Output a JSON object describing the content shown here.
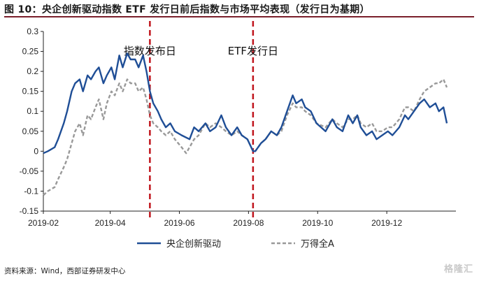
{
  "figure": {
    "title": "图 10：央企创新驱动指数 ETF 发行日前后指数与市场平均表现（发行日为基期）",
    "source": "资料来源：Wind，西部证券研发中心",
    "watermark": "格隆汇"
  },
  "colors": {
    "series_index": "#1f4e96",
    "series_market": "#999999",
    "event_line": "#c0141c",
    "title_rule": "#7a1f2b"
  },
  "chart_data": {
    "type": "line",
    "title": "",
    "xlabel": "",
    "ylabel": "",
    "ylim": [
      -0.15,
      0.3
    ],
    "yticks": [
      -0.15,
      -0.1,
      -0.05,
      0,
      0.05,
      0.1,
      0.15,
      0.2,
      0.25,
      0.3
    ],
    "ytick_labels": [
      "-0.15",
      "-0.1",
      "-0.05",
      "0",
      "0.05",
      "0.1",
      "0.15",
      "0.2",
      "0.25",
      "0.3"
    ],
    "xlim": [
      "2019-02-01",
      "2020-01-31"
    ],
    "xticks": [
      "2019-02",
      "2019-04",
      "2019-06",
      "2019-08",
      "2019-10",
      "2019-12"
    ],
    "grid": false,
    "legend_position": "bottom",
    "annotations": [
      {
        "label": "指数发布日",
        "date": "2019-05-06"
      },
      {
        "label": "ETF发行日",
        "date": "2019-08-05"
      }
    ],
    "series": [
      {
        "name": "央企创新驱动",
        "style": "solid",
        "points": [
          [
            "2019-02-01",
            -0.005
          ],
          [
            "2019-02-05",
            0.0
          ],
          [
            "2019-02-11",
            0.01
          ],
          [
            "2019-02-14",
            0.03
          ],
          [
            "2019-02-19",
            0.07
          ],
          [
            "2019-02-22",
            0.1
          ],
          [
            "2019-02-26",
            0.15
          ],
          [
            "2019-03-01",
            0.17
          ],
          [
            "2019-03-05",
            0.18
          ],
          [
            "2019-03-08",
            0.15
          ],
          [
            "2019-03-12",
            0.19
          ],
          [
            "2019-03-15",
            0.18
          ],
          [
            "2019-03-19",
            0.2
          ],
          [
            "2019-03-22",
            0.21
          ],
          [
            "2019-03-26",
            0.17
          ],
          [
            "2019-03-29",
            0.19
          ],
          [
            "2019-04-02",
            0.21
          ],
          [
            "2019-04-05",
            0.18
          ],
          [
            "2019-04-09",
            0.24
          ],
          [
            "2019-04-12",
            0.21
          ],
          [
            "2019-04-16",
            0.245
          ],
          [
            "2019-04-19",
            0.23
          ],
          [
            "2019-04-23",
            0.23
          ],
          [
            "2019-04-26",
            0.21
          ],
          [
            "2019-04-30",
            0.24
          ],
          [
            "2019-05-03",
            0.2
          ],
          [
            "2019-05-06",
            0.15
          ],
          [
            "2019-05-09",
            0.12
          ],
          [
            "2019-05-13",
            0.1
          ],
          [
            "2019-05-16",
            0.08
          ],
          [
            "2019-05-20",
            0.06
          ],
          [
            "2019-05-24",
            0.07
          ],
          [
            "2019-05-28",
            0.05
          ],
          [
            "2019-06-03",
            0.04
          ],
          [
            "2019-06-10",
            0.03
          ],
          [
            "2019-06-14",
            0.06
          ],
          [
            "2019-06-18",
            0.05
          ],
          [
            "2019-06-24",
            0.07
          ],
          [
            "2019-06-28",
            0.05
          ],
          [
            "2019-07-03",
            0.06
          ],
          [
            "2019-07-08",
            0.09
          ],
          [
            "2019-07-12",
            0.06
          ],
          [
            "2019-07-17",
            0.04
          ],
          [
            "2019-07-22",
            0.06
          ],
          [
            "2019-07-26",
            0.04
          ],
          [
            "2019-07-31",
            0.03
          ],
          [
            "2019-08-05",
            0.0
          ],
          [
            "2019-08-07",
            0.0
          ],
          [
            "2019-08-12",
            0.02
          ],
          [
            "2019-08-16",
            0.03
          ],
          [
            "2019-08-21",
            0.05
          ],
          [
            "2019-08-26",
            0.04
          ],
          [
            "2019-08-30",
            0.06
          ],
          [
            "2019-09-04",
            0.1
          ],
          [
            "2019-09-09",
            0.14
          ],
          [
            "2019-09-12",
            0.12
          ],
          [
            "2019-09-17",
            0.13
          ],
          [
            "2019-09-20",
            0.11
          ],
          [
            "2019-09-25",
            0.1
          ],
          [
            "2019-09-30",
            0.07
          ],
          [
            "2019-10-08",
            0.05
          ],
          [
            "2019-10-14",
            0.08
          ],
          [
            "2019-10-18",
            0.06
          ],
          [
            "2019-10-23",
            0.05
          ],
          [
            "2019-10-28",
            0.09
          ],
          [
            "2019-11-01",
            0.07
          ],
          [
            "2019-11-05",
            0.09
          ],
          [
            "2019-11-08",
            0.06
          ],
          [
            "2019-11-13",
            0.04
          ],
          [
            "2019-11-18",
            0.05
          ],
          [
            "2019-11-22",
            0.03
          ],
          [
            "2019-11-27",
            0.04
          ],
          [
            "2019-12-02",
            0.05
          ],
          [
            "2019-12-06",
            0.04
          ],
          [
            "2019-12-12",
            0.06
          ],
          [
            "2019-12-17",
            0.09
          ],
          [
            "2019-12-20",
            0.08
          ],
          [
            "2019-12-25",
            0.1
          ],
          [
            "2019-12-30",
            0.12
          ],
          [
            "2020-01-03",
            0.13
          ],
          [
            "2020-01-08",
            0.11
          ],
          [
            "2020-01-13",
            0.12
          ],
          [
            "2020-01-16",
            0.1
          ],
          [
            "2020-01-20",
            0.11
          ],
          [
            "2020-01-23",
            0.07
          ]
        ]
      },
      {
        "name": "万得全A",
        "style": "dashed",
        "points": [
          [
            "2019-02-01",
            -0.11
          ],
          [
            "2019-02-05",
            -0.1
          ],
          [
            "2019-02-11",
            -0.09
          ],
          [
            "2019-02-14",
            -0.07
          ],
          [
            "2019-02-19",
            -0.04
          ],
          [
            "2019-02-22",
            -0.02
          ],
          [
            "2019-02-26",
            0.02
          ],
          [
            "2019-03-01",
            0.05
          ],
          [
            "2019-03-05",
            0.07
          ],
          [
            "2019-03-08",
            0.04
          ],
          [
            "2019-03-12",
            0.09
          ],
          [
            "2019-03-15",
            0.08
          ],
          [
            "2019-03-19",
            0.11
          ],
          [
            "2019-03-22",
            0.13
          ],
          [
            "2019-03-26",
            0.08
          ],
          [
            "2019-03-29",
            0.12
          ],
          [
            "2019-04-02",
            0.15
          ],
          [
            "2019-04-05",
            0.14
          ],
          [
            "2019-04-09",
            0.17
          ],
          [
            "2019-04-12",
            0.15
          ],
          [
            "2019-04-16",
            0.18
          ],
          [
            "2019-04-19",
            0.17
          ],
          [
            "2019-04-23",
            0.17
          ],
          [
            "2019-04-26",
            0.15
          ],
          [
            "2019-04-30",
            0.16
          ],
          [
            "2019-05-03",
            0.13
          ],
          [
            "2019-05-06",
            0.09
          ],
          [
            "2019-05-09",
            0.07
          ],
          [
            "2019-05-13",
            0.06
          ],
          [
            "2019-05-16",
            0.05
          ],
          [
            "2019-05-20",
            0.04
          ],
          [
            "2019-05-24",
            0.05
          ],
          [
            "2019-05-28",
            0.03
          ],
          [
            "2019-06-03",
            0.01
          ],
          [
            "2019-06-07",
            -0.005
          ],
          [
            "2019-06-14",
            0.03
          ],
          [
            "2019-06-18",
            0.04
          ],
          [
            "2019-06-24",
            0.07
          ],
          [
            "2019-06-28",
            0.06
          ],
          [
            "2019-07-03",
            0.07
          ],
          [
            "2019-07-08",
            0.06
          ],
          [
            "2019-07-12",
            0.05
          ],
          [
            "2019-07-17",
            0.04
          ],
          [
            "2019-07-22",
            0.05
          ],
          [
            "2019-07-26",
            0.04
          ],
          [
            "2019-07-31",
            0.03
          ],
          [
            "2019-08-05",
            0.0
          ],
          [
            "2019-08-07",
            0.0
          ],
          [
            "2019-08-12",
            0.02
          ],
          [
            "2019-08-16",
            0.03
          ],
          [
            "2019-08-21",
            0.05
          ],
          [
            "2019-08-26",
            0.04
          ],
          [
            "2019-08-30",
            0.05
          ],
          [
            "2019-09-04",
            0.09
          ],
          [
            "2019-09-09",
            0.12
          ],
          [
            "2019-09-12",
            0.11
          ],
          [
            "2019-09-17",
            0.11
          ],
          [
            "2019-09-20",
            0.1
          ],
          [
            "2019-09-25",
            0.09
          ],
          [
            "2019-09-30",
            0.07
          ],
          [
            "2019-10-08",
            0.06
          ],
          [
            "2019-10-14",
            0.08
          ],
          [
            "2019-10-18",
            0.07
          ],
          [
            "2019-10-23",
            0.06
          ],
          [
            "2019-10-28",
            0.08
          ],
          [
            "2019-11-01",
            0.08
          ],
          [
            "2019-11-05",
            0.09
          ],
          [
            "2019-11-08",
            0.07
          ],
          [
            "2019-11-13",
            0.06
          ],
          [
            "2019-11-18",
            0.07
          ],
          [
            "2019-11-22",
            0.05
          ],
          [
            "2019-11-27",
            0.05
          ],
          [
            "2019-12-02",
            0.06
          ],
          [
            "2019-12-06",
            0.06
          ],
          [
            "2019-12-12",
            0.08
          ],
          [
            "2019-12-17",
            0.11
          ],
          [
            "2019-12-20",
            0.11
          ],
          [
            "2019-12-25",
            0.1
          ],
          [
            "2019-12-30",
            0.13
          ],
          [
            "2020-01-03",
            0.15
          ],
          [
            "2020-01-08",
            0.16
          ],
          [
            "2020-01-13",
            0.17
          ],
          [
            "2020-01-16",
            0.17
          ],
          [
            "2020-01-20",
            0.18
          ],
          [
            "2020-01-23",
            0.16
          ]
        ]
      }
    ]
  }
}
